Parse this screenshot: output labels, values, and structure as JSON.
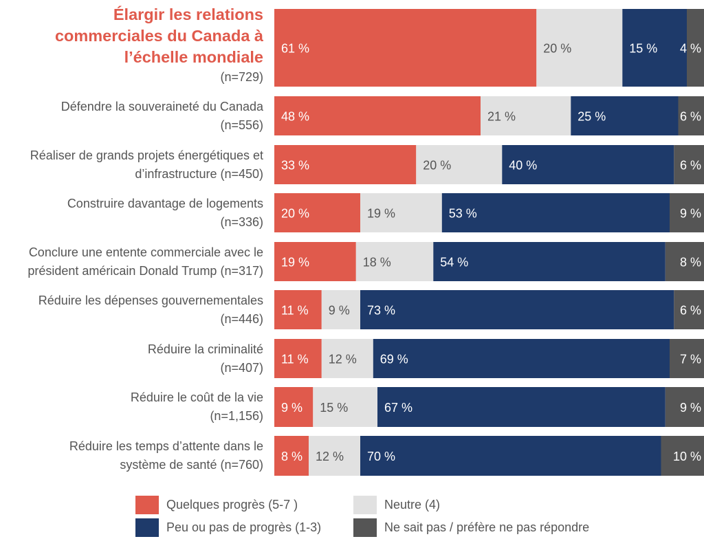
{
  "chart_data": {
    "type": "bar",
    "orientation": "horizontal",
    "stacked": true,
    "title": "",
    "xlabel": "",
    "ylabel": "",
    "xlim": [
      0,
      100
    ],
    "grid": false,
    "legend_position": "bottom",
    "value_suffix": " %",
    "categories": [
      {
        "label": "Élargir les relations commerciales du Canada à l’échelle mondiale",
        "lines": [
          "Élargir les relations",
          "commerciales du Canada à",
          "l’échelle mondiale"
        ],
        "n": "(n=729)",
        "highlight": true
      },
      {
        "label": "Défendre la souveraineté du Canada",
        "lines": [
          "Défendre la souveraineté du Canada"
        ],
        "n": "(n=556)",
        "highlight": false
      },
      {
        "label": "Réaliser de grands projets énergétiques et d’infrastructure",
        "lines": [
          "Réaliser de grands projets énergétiques et",
          "d’infrastructure (n=450)"
        ],
        "n": "",
        "highlight": false
      },
      {
        "label": "Construire davantage de logements",
        "lines": [
          "Construire davantage de logements"
        ],
        "n": "(n=336)",
        "highlight": false
      },
      {
        "label": "Conclure une entente commerciale avec le président américain Donald Trump",
        "lines": [
          "Conclure une entente commerciale avec le",
          "président américain Donald Trump (n=317)"
        ],
        "n": "",
        "highlight": false
      },
      {
        "label": "Réduire les dépenses gouvernementales",
        "lines": [
          "Réduire les dépenses gouvernementales"
        ],
        "n": "(n=446)",
        "highlight": false
      },
      {
        "label": "Réduire la criminalité",
        "lines": [
          "Réduire la criminalité"
        ],
        "n": "(n=407)",
        "highlight": false
      },
      {
        "label": "Réduire le coût de la vie",
        "lines": [
          "Réduire le coût de la vie"
        ],
        "n": "(n=1,156)",
        "highlight": false
      },
      {
        "label": "Réduire les temps d’attente dans le système de santé",
        "lines": [
          "Réduire les temps d’attente dans le",
          "système de santé (n=760)"
        ],
        "n": "",
        "highlight": false
      }
    ],
    "series": [
      {
        "name": "Quelques progrès (5-7 )",
        "color": "#E05A4C",
        "label_color": "#ffffff",
        "values": [
          61,
          48,
          33,
          20,
          19,
          11,
          11,
          9,
          8
        ]
      },
      {
        "name": "Neutre (4)",
        "color": "#E1E1E1",
        "label_color": "#555555",
        "values": [
          20,
          21,
          20,
          19,
          18,
          9,
          12,
          15,
          12
        ]
      },
      {
        "name": "Peu ou pas de progrès (1-3)",
        "color": "#1E3A6A",
        "label_color": "#ffffff",
        "values": [
          15,
          25,
          40,
          53,
          54,
          73,
          69,
          67,
          70
        ]
      },
      {
        "name": "Ne sait pas / préfère ne pas répondre",
        "color": "#555555",
        "label_color": "#ffffff",
        "values": [
          4,
          6,
          6,
          9,
          8,
          6,
          7,
          9,
          10
        ]
      }
    ]
  },
  "legend": {
    "items": [
      {
        "label": "Quelques progrès (5-7 )",
        "color": "#E05A4C"
      },
      {
        "label": "Neutre (4)",
        "color": "#E1E1E1"
      },
      {
        "label": "Peu ou pas de progrès (1-3)",
        "color": "#1E3A6A"
      },
      {
        "label": "Ne sait pas / préfère ne pas répondre",
        "color": "#555555"
      }
    ]
  }
}
